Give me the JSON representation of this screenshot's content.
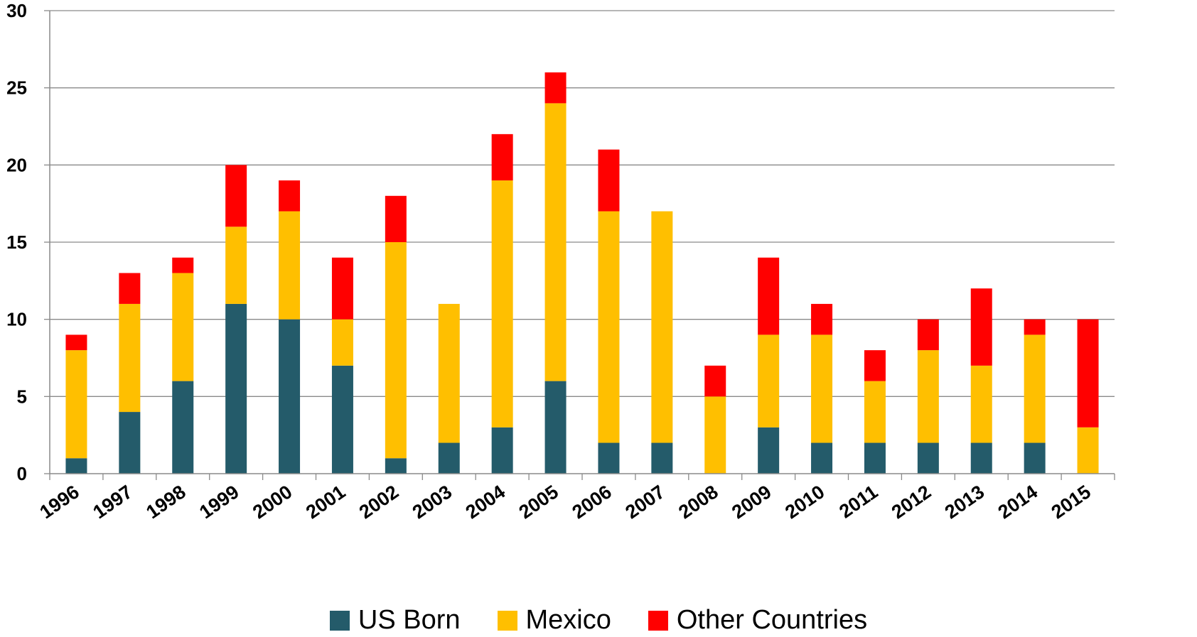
{
  "chart_data": {
    "type": "bar",
    "stacked": true,
    "title": "",
    "xlabel": "",
    "ylabel": "",
    "ylim": [
      0,
      30
    ],
    "yticks": [
      0,
      5,
      10,
      15,
      20,
      25,
      30
    ],
    "grid": true,
    "legend_position": "bottom",
    "categories": [
      "1996",
      "1997",
      "1998",
      "1999",
      "2000",
      "2001",
      "2002",
      "2003",
      "2004",
      "2005",
      "2006",
      "2007",
      "2008",
      "2009",
      "2010",
      "2011",
      "2012",
      "2013",
      "2014",
      "2015"
    ],
    "series": [
      {
        "name": "US Born",
        "color": "#245B6A",
        "values": [
          1,
          4,
          6,
          11,
          10,
          7,
          1,
          2,
          3,
          6,
          2,
          2,
          0,
          3,
          2,
          2,
          2,
          2,
          2,
          0
        ]
      },
      {
        "name": "Mexico",
        "color": "#FFBF00",
        "values": [
          7,
          7,
          7,
          5,
          7,
          3,
          14,
          9,
          16,
          18,
          15,
          15,
          5,
          6,
          7,
          4,
          6,
          5,
          7,
          3
        ]
      },
      {
        "name": "Other Countries",
        "color": "#FF0000",
        "values": [
          1,
          2,
          1,
          4,
          2,
          4,
          3,
          0,
          3,
          2,
          4,
          0,
          2,
          5,
          2,
          2,
          2,
          5,
          1,
          7
        ]
      }
    ]
  }
}
